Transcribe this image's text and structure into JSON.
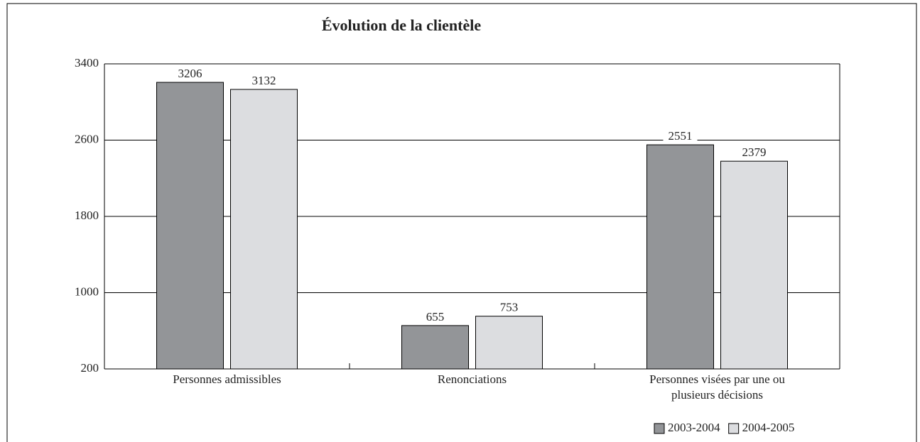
{
  "chart_data": {
    "type": "bar",
    "title": "Évolution de la clientèle",
    "categories": [
      "Personnes admissibles",
      "Renonciations",
      "Personnes visées par une ou plusieurs décisions"
    ],
    "series": [
      {
        "name": "2003-2004",
        "color": "#939598",
        "values": [
          3206,
          655,
          2551
        ]
      },
      {
        "name": "2004-2005",
        "color": "#dcdde0",
        "values": [
          3132,
          753,
          2379
        ]
      }
    ],
    "ylim": [
      200,
      3400
    ],
    "yticks": [
      200,
      1000,
      1800,
      2600,
      3400
    ],
    "grid": true,
    "legend": "bottom-right"
  }
}
